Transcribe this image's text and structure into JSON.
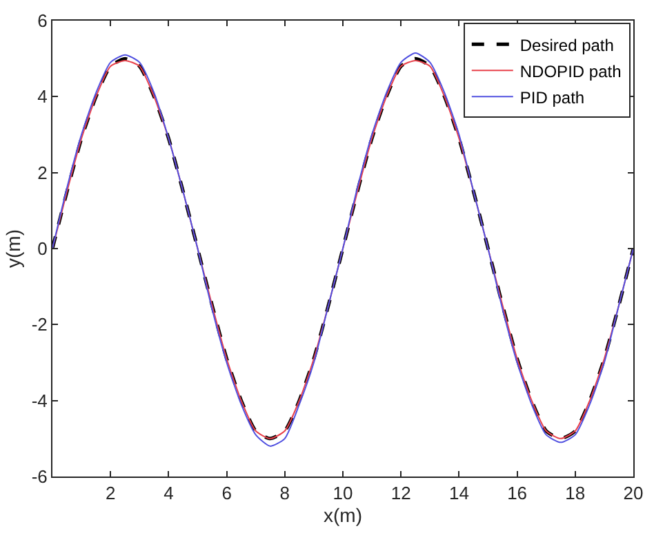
{
  "chart_data": {
    "type": "line",
    "xlabel": "x(m)",
    "ylabel": "y(m)",
    "x": [
      0,
      0.5,
      1,
      1.5,
      2,
      2.5,
      3,
      3.5,
      4,
      4.5,
      5,
      5.5,
      6,
      6.5,
      7,
      7.5,
      8,
      8.5,
      9,
      9.5,
      10,
      10.5,
      11,
      11.5,
      12,
      12.5,
      13,
      13.5,
      14,
      14.5,
      15,
      15.5,
      16,
      16.5,
      17,
      17.5,
      18,
      18.5,
      19,
      19.5,
      20
    ],
    "series": [
      {
        "name": "Desired path",
        "color": "#000000",
        "line_style": "dashed",
        "values": [
          0,
          1.5,
          2.9,
          4.0,
          4.8,
          5.0,
          4.8,
          4.0,
          2.9,
          1.5,
          0,
          -1.5,
          -2.9,
          -4.0,
          -4.8,
          -5.0,
          -4.8,
          -4.0,
          -2.9,
          -1.5,
          0,
          1.5,
          2.9,
          4.0,
          4.8,
          5.0,
          4.8,
          4.0,
          2.9,
          1.5,
          0,
          -1.5,
          -2.9,
          -4.0,
          -4.8,
          -5.0,
          -4.8,
          -4.0,
          -2.9,
          -1.5,
          0
        ]
      },
      {
        "name": "NDOPID path",
        "color": "#e8404a",
        "line_style": "solid",
        "values": [
          0,
          1.5,
          2.9,
          4.0,
          4.8,
          4.95,
          4.8,
          4.0,
          2.9,
          1.5,
          0,
          -1.5,
          -2.9,
          -4.0,
          -4.8,
          -5.0,
          -4.8,
          -4.0,
          -2.9,
          -1.5,
          0,
          1.5,
          2.9,
          4.0,
          4.8,
          4.95,
          4.8,
          4.0,
          2.9,
          1.5,
          0,
          -1.5,
          -2.9,
          -4.0,
          -4.8,
          -5.0,
          -4.8,
          -4.0,
          -2.9,
          -1.5,
          0
        ]
      },
      {
        "name": "PID path",
        "color": "#5050e0",
        "line_style": "solid",
        "values": [
          0,
          1.6,
          3.0,
          4.1,
          4.9,
          5.1,
          4.9,
          4.1,
          2.9,
          1.5,
          0,
          -1.6,
          -3.0,
          -4.1,
          -4.9,
          -5.2,
          -5.0,
          -4.1,
          -3.0,
          -1.5,
          0,
          1.6,
          3.0,
          4.1,
          4.9,
          5.15,
          4.9,
          4.1,
          3.0,
          1.5,
          0,
          -1.6,
          -3.0,
          -4.1,
          -4.9,
          -5.1,
          -4.9,
          -4.1,
          -3.0,
          -1.5,
          0
        ]
      }
    ],
    "xlim": [
      0,
      20
    ],
    "xticks": [
      2,
      4,
      6,
      8,
      10,
      12,
      14,
      16,
      18,
      20
    ],
    "ylim": [
      -6,
      6
    ],
    "yticks": [
      -6,
      -4,
      -2,
      0,
      2,
      4,
      6
    ],
    "grid": false,
    "legend": "top right",
    "marker": "none"
  }
}
